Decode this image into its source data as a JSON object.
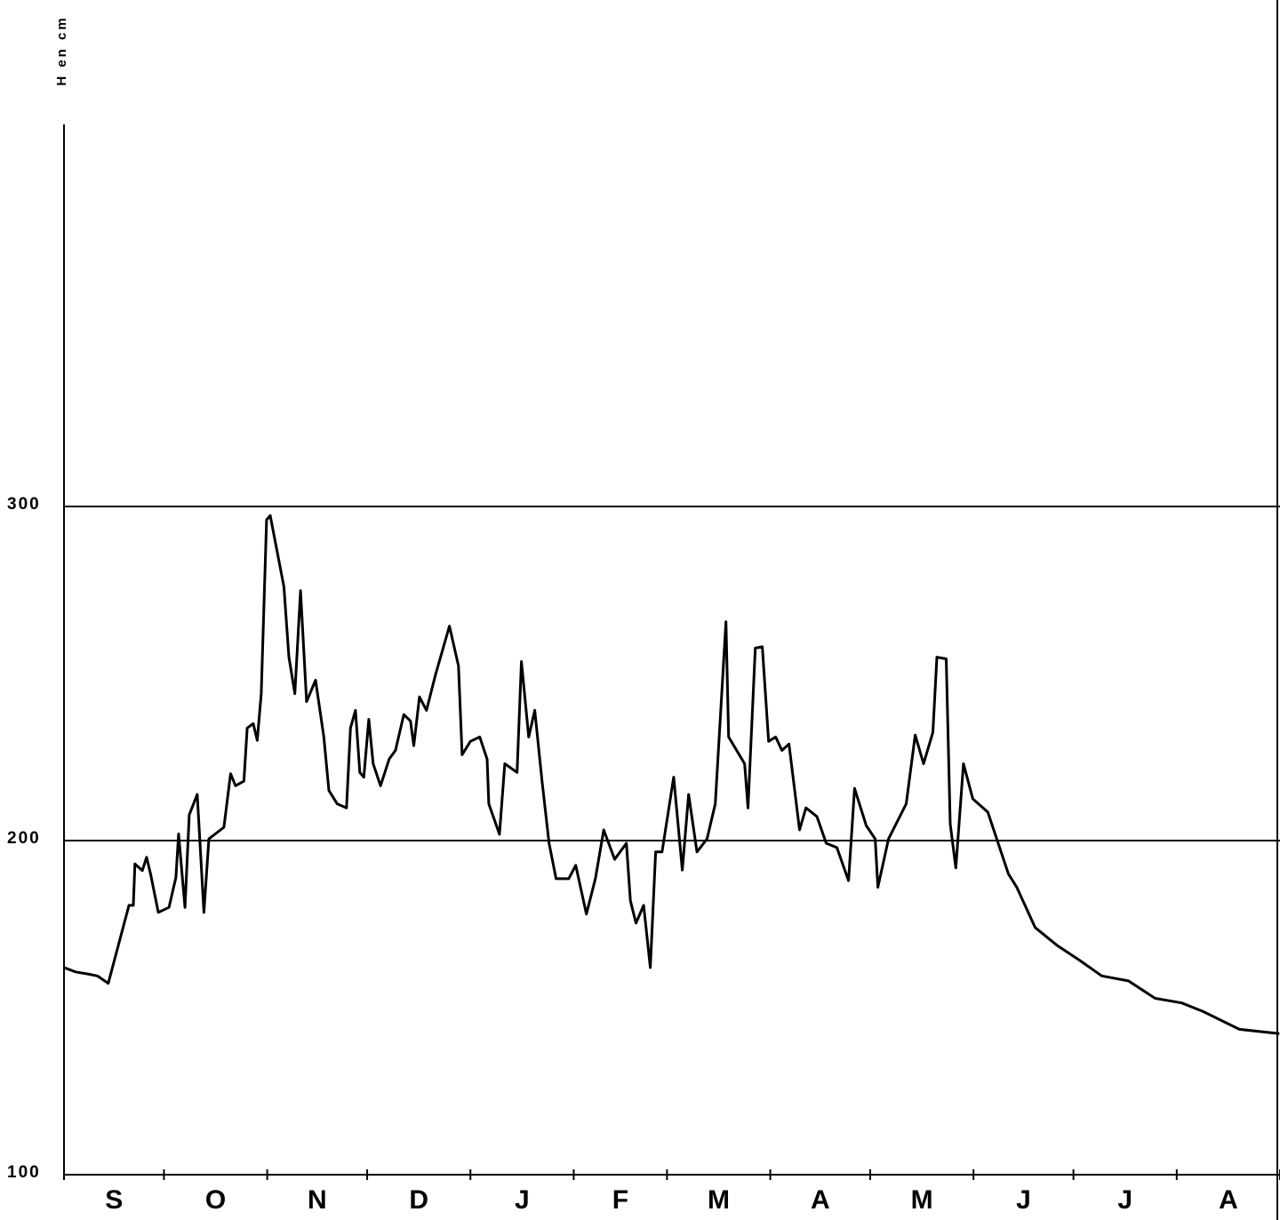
{
  "chart_data": {
    "type": "line",
    "y_label": "H en cm",
    "ylim": [
      100,
      300
    ],
    "yticks": [
      100,
      200,
      300
    ],
    "grid": true,
    "xlim": [
      0,
      365
    ],
    "xticks": [
      {
        "value": 15,
        "label": "S"
      },
      {
        "value": 45.5,
        "label": "O"
      },
      {
        "value": 76,
        "label": "N"
      },
      {
        "value": 106.5,
        "label": "D"
      },
      {
        "value": 137.5,
        "label": "J"
      },
      {
        "value": 167,
        "label": "F"
      },
      {
        "value": 196.5,
        "label": "M"
      },
      {
        "value": 227,
        "label": "A"
      },
      {
        "value": 257.5,
        "label": "M"
      },
      {
        "value": 288,
        "label": "J"
      },
      {
        "value": 318.5,
        "label": "J"
      },
      {
        "value": 349.5,
        "label": "A"
      }
    ],
    "xminorticks": [
      0,
      30,
      61,
      91,
      122,
      153,
      181,
      212,
      242,
      273,
      303,
      334,
      365
    ],
    "x": [
      0,
      3.5,
      7.5,
      10,
      13.3,
      19.5,
      20.8,
      21.3,
      23.5,
      24.8,
      26,
      28.3,
      31.5,
      33.6,
      34.4,
      36.3,
      37.6,
      40,
      42,
      43.5,
      48,
      50,
      51.5,
      54,
      55,
      56.8,
      58,
      59.2,
      60.8,
      61.9,
      66,
      67.5,
      69.3,
      71,
      72.8,
      75.5,
      78,
      79.5,
      82,
      84.8,
      86,
      87.5,
      88.8,
      90,
      91.5,
      92.8,
      95,
      97.6,
      99.5,
      102,
      104,
      105,
      106.7,
      108.8,
      111.5,
      115.7,
      118.4,
      119.5,
      122,
      124.8,
      127,
      127.5,
      130.7,
      132.3,
      136,
      137.3,
      139.5,
      141.3,
      143.5,
      145.6,
      147.7,
      151.5,
      153.6,
      156.8,
      159.5,
      162,
      165.3,
      168.8,
      170,
      171.7,
      174,
      176,
      177.6,
      179.5,
      183,
      185.6,
      187.5,
      190,
      193,
      195.5,
      198.7,
      199.5,
      204.3,
      205.3,
      207.5,
      209.6,
      211.5,
      213.6,
      215.5,
      217.6,
      220.8,
      222.7,
      226,
      228.8,
      232,
      235.5,
      237.3,
      240.8,
      243.5,
      244.3,
      247.5,
      252.8,
      255.5,
      258,
      260.8,
      262,
      264.8,
      266,
      267.7,
      270,
      272.8,
      277.3,
      283.5,
      286,
      291.5,
      298,
      304.8,
      311.5,
      319.5,
      327.5,
      335.5,
      342,
      352.8,
      364.8
    ],
    "series": [
      {
        "color": "#000000",
        "values": [
          162,
          160.7,
          160,
          159.5,
          157.3,
          180.6,
          180.6,
          193,
          191,
          195,
          190,
          178.5,
          180,
          189,
          202,
          180,
          207.7,
          213.8,
          178.5,
          200.5,
          204,
          220,
          216.4,
          217.8,
          233.7,
          235,
          230,
          244,
          296,
          297.3,
          276,
          255,
          244,
          274.8,
          241.6,
          248,
          231,
          215,
          211,
          209.8,
          233.7,
          239,
          220.4,
          219,
          236.3,
          223,
          216.4,
          224.4,
          227,
          237.7,
          235.8,
          228.4,
          243,
          239,
          249.6,
          264.2,
          252.3,
          225.7,
          229.7,
          231,
          224.4,
          211,
          201.9,
          223,
          220.4,
          253.6,
          231,
          239,
          217.8,
          199.2,
          188.6,
          188.6,
          192.6,
          178,
          188.6,
          203.2,
          194.4,
          199.2,
          182,
          175.3,
          180.6,
          162,
          196.6,
          196.6,
          219,
          191.2,
          213.8,
          196.6,
          200.5,
          211,
          265.5,
          231,
          223,
          209.8,
          257.6,
          258,
          229.7,
          231,
          227,
          228.9,
          203.2,
          209.8,
          207.2,
          199.2,
          197.9,
          188,
          215.6,
          204.5,
          200.5,
          186,
          200.5,
          211,
          231.6,
          223,
          232.4,
          254.9,
          254.4,
          205,
          191.8,
          223,
          212.5,
          208.5,
          190,
          186,
          174,
          168.7,
          164.2,
          159.5,
          158,
          152.8,
          151.4,
          148.8,
          143.5,
          142.2
        ]
      }
    ]
  }
}
